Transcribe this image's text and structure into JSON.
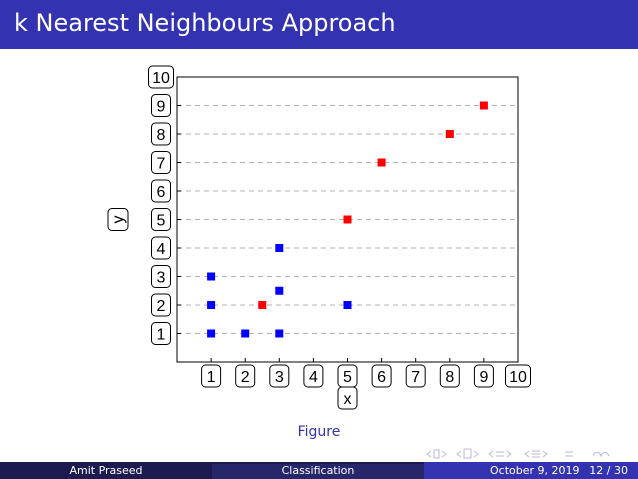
{
  "slide": {
    "title": "k Nearest Neighbours Approach",
    "caption": "Figure",
    "footer": {
      "author": "Amit Praseed",
      "section": "Classification",
      "date": "October 9, 2019",
      "page": "12 / 30"
    },
    "colors": {
      "header": "#3333b2",
      "footer_dark": "#1b1b4f",
      "blue_points": "#0000ff",
      "red_points": "#ff0000"
    }
  },
  "chart_data": {
    "type": "scatter",
    "title": "",
    "xlabel": "x",
    "ylabel": "y",
    "xlim": [
      0,
      10
    ],
    "ylim": [
      0,
      10
    ],
    "x_ticks": [
      1,
      2,
      3,
      4,
      5,
      6,
      7,
      8,
      9,
      10
    ],
    "y_ticks": [
      1,
      2,
      3,
      4,
      5,
      6,
      7,
      8,
      9,
      10
    ],
    "grid": "horizontal-dashed",
    "series": [
      {
        "color": "#0000ff",
        "marker": "square",
        "points": [
          [
            1,
            1
          ],
          [
            2,
            1
          ],
          [
            3,
            1
          ],
          [
            1,
            2
          ],
          [
            5,
            2
          ],
          [
            3,
            2.5
          ],
          [
            1,
            3
          ],
          [
            3,
            4
          ]
        ]
      },
      {
        "color": "#ff0000",
        "marker": "square",
        "points": [
          [
            2.5,
            2
          ],
          [
            5,
            5
          ],
          [
            6,
            7
          ],
          [
            8,
            8
          ],
          [
            9,
            9
          ]
        ]
      }
    ]
  }
}
